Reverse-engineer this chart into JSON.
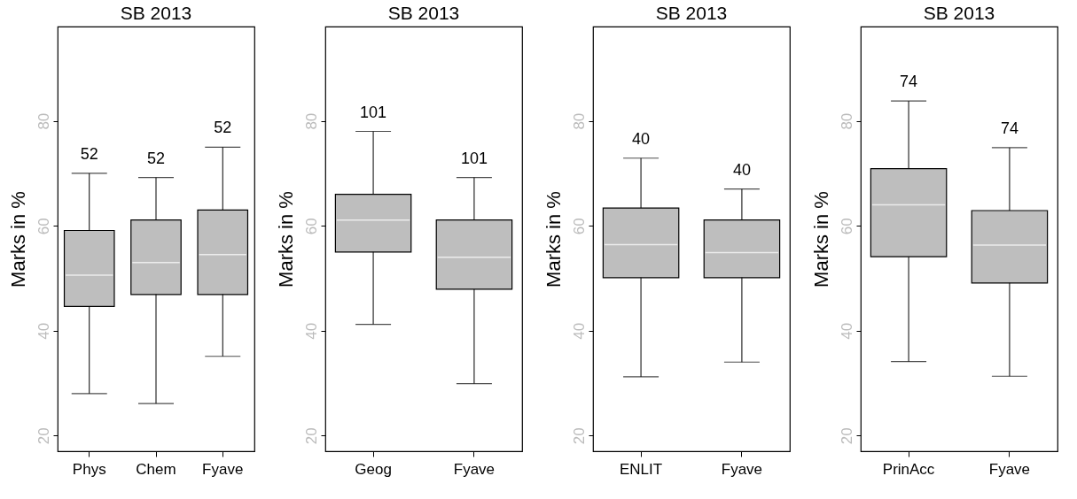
{
  "chart_data": [
    {
      "type": "box",
      "title": "SB 2013",
      "ylabel": "Marks in %",
      "categories": [
        "Phys",
        "Chem",
        "Fyave"
      ],
      "ylim": [
        17,
        98
      ],
      "yticks": [
        20,
        40,
        60,
        80
      ],
      "series": [
        {
          "color": "#bebebe",
          "boxes": [
            {
              "low": 28,
              "q1": 44.6,
              "median": 50.6,
              "q3": 59.1,
              "high": 70
            },
            {
              "low": 26.1,
              "q1": 46.9,
              "median": 53,
              "q3": 61.1,
              "high": 69.2
            },
            {
              "low": 35.1,
              "q1": 46.9,
              "median": 54.5,
              "q3": 63,
              "high": 75
            }
          ]
        }
      ],
      "annotations": [
        {
          "text": "52",
          "x": "Phys",
          "y": 70
        },
        {
          "text": "52",
          "x": "Chem",
          "y": 69.2
        },
        {
          "text": "52",
          "x": "Fyave",
          "y": 75
        }
      ]
    },
    {
      "type": "box",
      "title": "SB 2013",
      "ylabel": "Marks in %",
      "categories": [
        "Geog",
        "Fyave"
      ],
      "ylim": [
        17,
        98
      ],
      "yticks": [
        20,
        40,
        60,
        80
      ],
      "series": [
        {
          "color": "#bebebe",
          "boxes": [
            {
              "low": 41.2,
              "q1": 55,
              "median": 61.1,
              "q3": 66,
              "high": 78
            },
            {
              "low": 29.9,
              "q1": 47.9,
              "median": 54,
              "q3": 61.1,
              "high": 69.2
            }
          ]
        }
      ],
      "annotations": [
        {
          "text": "101",
          "x": "Geog",
          "y": 78
        },
        {
          "text": "101",
          "x": "Fyave",
          "y": 69.2
        }
      ]
    },
    {
      "type": "box",
      "title": "SB 2013",
      "ylabel": "Marks in %",
      "categories": [
        "ENLIT",
        "Fyave"
      ],
      "ylim": [
        17,
        98
      ],
      "yticks": [
        20,
        40,
        60,
        80
      ],
      "series": [
        {
          "color": "#bebebe",
          "boxes": [
            {
              "low": 31.2,
              "q1": 50.1,
              "median": 56.4,
              "q3": 63.4,
              "high": 72.9
            },
            {
              "low": 34,
              "q1": 50.1,
              "median": 54.9,
              "q3": 61.1,
              "high": 67
            }
          ]
        }
      ],
      "annotations": [
        {
          "text": "40",
          "x": "ENLIT",
          "y": 72.9
        },
        {
          "text": "40",
          "x": "Fyave",
          "y": 67
        }
      ]
    },
    {
      "type": "box",
      "title": "SB 2013",
      "ylabel": "Marks in %",
      "categories": [
        "PrinAcc",
        "Fyave"
      ],
      "ylim": [
        17,
        98
      ],
      "yticks": [
        20,
        40,
        60,
        80
      ],
      "series": [
        {
          "color": "#bebebe",
          "boxes": [
            {
              "low": 34.1,
              "q1": 54.1,
              "median": 64,
              "q3": 70.9,
              "high": 83.8
            },
            {
              "low": 31.3,
              "q1": 49.1,
              "median": 56.3,
              "q3": 62.9,
              "high": 74.9
            }
          ]
        }
      ],
      "annotations": [
        {
          "text": "74",
          "x": "PrinAcc",
          "y": 83.8
        },
        {
          "text": "74",
          "x": "Fyave",
          "y": 74.9
        }
      ]
    }
  ]
}
